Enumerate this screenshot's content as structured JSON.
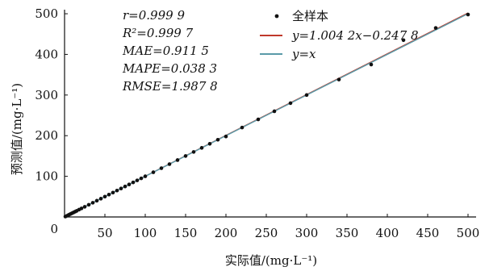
{
  "chart_data": {
    "type": "scatter",
    "xlabel": "实际值/(mg·L⁻¹)",
    "ylabel": "预测值/(mg·L⁻¹)",
    "xlim": [
      0,
      510
    ],
    "ylim": [
      0,
      510
    ],
    "x_ticks": [
      0,
      50,
      100,
      150,
      200,
      250,
      300,
      350,
      400,
      450,
      500
    ],
    "y_ticks": [
      0,
      100,
      200,
      300,
      400,
      500
    ],
    "x_tick_labels": [
      "",
      "50",
      "100",
      "150",
      "200",
      "250",
      "300",
      "350",
      "400",
      "450",
      "500"
    ],
    "y_tick_labels": [
      "0",
      "100",
      "200",
      "300",
      "400",
      "500"
    ],
    "grid": false,
    "legend_position": "top-right",
    "stats": {
      "r": "r=0.999 9",
      "r2": "R²=0.999 7",
      "mae": "MAE=0.911 5",
      "mape": "MAPE=0.038 3",
      "rmse": "RMSE=1.987 8"
    },
    "series": [
      {
        "name": "全样本",
        "kind": "points",
        "color": "#111111",
        "x": [
          1,
          3,
          5,
          7,
          9,
          11,
          13,
          15,
          18,
          21,
          25,
          30,
          35,
          40,
          45,
          50,
          55,
          60,
          65,
          70,
          75,
          80,
          85,
          90,
          95,
          100,
          110,
          120,
          130,
          140,
          150,
          160,
          170,
          180,
          190,
          200,
          220,
          240,
          260,
          280,
          300,
          340,
          380,
          420,
          460,
          500
        ],
        "y": [
          1,
          3,
          5,
          7,
          9,
          11,
          13,
          15,
          18,
          21,
          25,
          30,
          35,
          40,
          45,
          50,
          55,
          60,
          65,
          70,
          75,
          80,
          85,
          90,
          95,
          100,
          110,
          120,
          130,
          140,
          150,
          160,
          170,
          180,
          190,
          198,
          220,
          240,
          260,
          280,
          300,
          338,
          375,
          435,
          465,
          498
        ]
      },
      {
        "name": "y=1.004 2x−0.247 8",
        "kind": "line",
        "color": "#c0392b",
        "slope": 1.0042,
        "intercept": -0.2478
      },
      {
        "name": "y=x",
        "kind": "line",
        "color": "#5a9aa8",
        "slope": 1,
        "intercept": 0
      }
    ]
  }
}
